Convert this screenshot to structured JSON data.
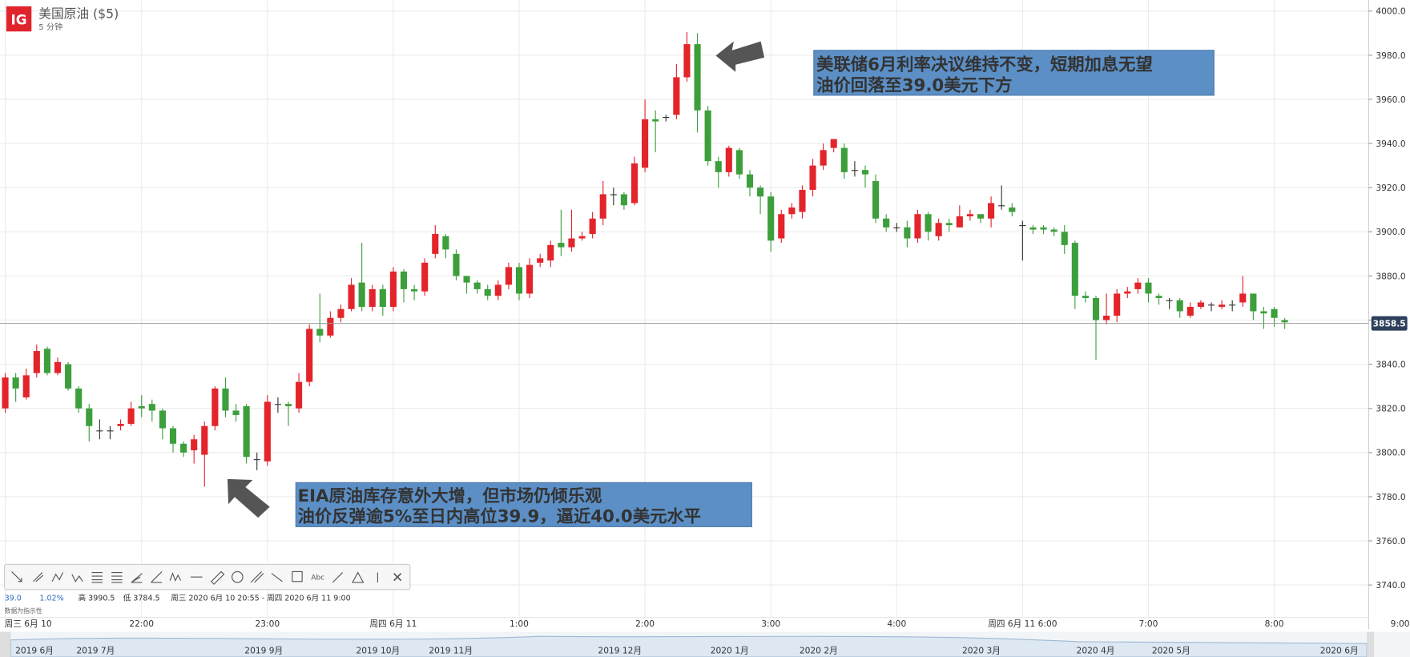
{
  "logo": "IG",
  "info": {
    "change": "39.0",
    "change_pct": "1.02%",
    "high": "高 3990.5",
    "low": "低 3784.5",
    "range": "周三 2020 6月 10 20:55 - 周四 2020 6月 11 9:00",
    "note": "数据为指示性"
  },
  "navigator": [
    "2019 6月",
    "2019 7月",
    "2019 9月",
    "2019 10月",
    "2019 11月",
    "2019 12月",
    "2020 1月",
    "2020 2月",
    "2020 3月",
    "2020 4月",
    "2020 5月",
    "2020 6月"
  ],
  "chart_data": {
    "type": "candlestick",
    "title": "美国原油 ($5)",
    "subtitle": "5 分钟",
    "up_color": "#e3242b",
    "down_color": "#3c9f3c",
    "grid": true,
    "open": [
      3820,
      3834,
      3825,
      3836,
      3847,
      3836,
      3840,
      3829,
      3820,
      3810,
      3810,
      3812,
      3813,
      3821,
      3822,
      3819,
      3811,
      3804,
      3801,
      3799,
      3812,
      3829,
      3819,
      3821,
      3797,
      3796,
      3822,
      3822,
      3820,
      3832,
      3856,
      3853,
      3861,
      3865,
      3877,
      3866,
      3874,
      3866,
      3882,
      3874,
      3873,
      3890,
      3898,
      3890,
      3880,
      3877,
      3874,
      3871,
      3876,
      3884,
      3872,
      3886,
      3887,
      3895,
      3893,
      3897,
      3899,
      3906,
      3917,
      3917,
      3913,
      3929,
      3951,
      3952,
      3953,
      3970,
      3985,
      3955,
      3932,
      3927,
      3937,
      3926,
      3920,
      3916,
      3897,
      3908,
      3909,
      3919,
      3930,
      3938,
      3938,
      3928,
      3928,
      3923,
      3906,
      3902,
      3902,
      3897,
      3908,
      3898,
      3904,
      3902,
      3907,
      3908,
      3906,
      3912,
      3911,
      3903,
      3902,
      3902,
      3901,
      3900,
      3895,
      3871,
      3870,
      3860,
      3862,
      3872,
      3874,
      3877,
      3871,
      3869,
      3869,
      3862,
      3866,
      3867,
      3866,
      3867,
      3868,
      3872,
      3864,
      3865,
      3860
    ],
    "high": [
      3836,
      3836,
      3838,
      3849,
      3848,
      3843,
      3841,
      3830,
      3822,
      3815,
      3812,
      3815,
      3823,
      3826,
      3824,
      3820,
      3812,
      3805,
      3808,
      3814,
      3830,
      3834,
      3822,
      3822,
      3800,
      3826,
      3825,
      3823,
      3836,
      3858,
      3872,
      3864,
      3867,
      3879,
      3895,
      3876,
      3876,
      3884,
      3883,
      3876,
      3888,
      3903,
      3899,
      3892,
      3880,
      3878,
      3876,
      3878,
      3886,
      3886,
      3888,
      3890,
      3896,
      3910,
      3910,
      3900,
      3909,
      3923,
      3920,
      3918,
      3934,
      3960,
      3955,
      3953,
      3976,
      3990.5,
      3990,
      3957,
      3934,
      3939,
      3938,
      3928,
      3921,
      3918,
      3910,
      3913,
      3921,
      3933,
      3940,
      3942,
      3940,
      3932,
      3930,
      3926,
      3908,
      3904,
      3905,
      3910,
      3909,
      3906,
      3906,
      3912,
      3910,
      3908,
      3916,
      3921,
      3913,
      3905,
      3903,
      3903,
      3902,
      3903,
      3896,
      3873,
      3871,
      3872,
      3874,
      3875,
      3879,
      3879,
      3872,
      3870,
      3870,
      3868,
      3869,
      3868,
      3869,
      3869,
      3880,
      3872,
      3866,
      3866,
      3861
    ],
    "low": [
      3818,
      3823,
      3824,
      3834,
      3835,
      3835,
      3828,
      3818,
      3805,
      3806,
      3806,
      3810,
      3812,
      3816,
      3814,
      3806,
      3800,
      3798,
      3795,
      3784.5,
      3810,
      3816,
      3814,
      3795,
      3792,
      3794,
      3818,
      3812,
      3818,
      3830,
      3850,
      3852,
      3859,
      3864,
      3864,
      3864,
      3862,
      3864,
      3868,
      3869,
      3871,
      3888,
      3888,
      3878,
      3872,
      3872,
      3869,
      3869,
      3874,
      3869,
      3870,
      3884,
      3884,
      3889,
      3891,
      3896,
      3897,
      3903,
      3912,
      3910,
      3912,
      3927,
      3936,
      3950,
      3951,
      3968,
      3945,
      3930,
      3920,
      3925,
      3924,
      3916,
      3908,
      3891,
      3895,
      3906,
      3906,
      3916,
      3928,
      3936,
      3924,
      3925,
      3920,
      3904,
      3900,
      3900,
      3893,
      3895,
      3896,
      3896,
      3900,
      3902,
      3905,
      3904,
      3902,
      3910,
      3907,
      3887,
      3899,
      3899,
      3898,
      3890,
      3865,
      3868,
      3842,
      3858,
      3859,
      3870,
      3872,
      3868,
      3867,
      3865,
      3861,
      3861,
      3865,
      3864,
      3865,
      3864,
      3866,
      3860,
      3856,
      3857,
      3856
    ],
    "close": [
      3834,
      3829,
      3835,
      3846,
      3836,
      3841,
      3829,
      3820,
      3812,
      3810,
      3810,
      3813,
      3820,
      3820,
      3819,
      3811,
      3804,
      3800,
      3806,
      3812,
      3829,
      3819,
      3817,
      3798,
      3797,
      3823,
      3822,
      3821,
      3832,
      3856,
      3853,
      3861,
      3865,
      3876,
      3866,
      3874,
      3866,
      3882,
      3874,
      3873,
      3886,
      3899,
      3892,
      3880,
      3877,
      3874,
      3871,
      3876,
      3884,
      3872,
      3885,
      3888,
      3894,
      3893,
      3897,
      3898,
      3906,
      3917,
      3917,
      3912,
      3931,
      3951,
      3950,
      3952,
      3970,
      3985,
      3955,
      3932,
      3927,
      3938,
      3926,
      3920,
      3916,
      3896,
      3908,
      3911,
      3919,
      3930,
      3937,
      3942,
      3927,
      3928,
      3926,
      3906,
      3902,
      3902,
      3897,
      3908,
      3900,
      3904,
      3903,
      3907,
      3908,
      3906,
      3913,
      3912,
      3909,
      3903,
      3901,
      3901,
      3900,
      3894,
      3871,
      3870,
      3860,
      3862,
      3872,
      3873,
      3877,
      3872,
      3870,
      3869,
      3864,
      3866,
      3868,
      3867,
      3867,
      3867,
      3872,
      3864,
      3863,
      3861,
      3859
    ],
    "xlim": [
      -0.5,
      130
    ],
    "xticks": [
      {
        "value": 0,
        "label": "周三 6月 10"
      },
      {
        "value": 13,
        "label": "22:00"
      },
      {
        "value": 25,
        "label": "23:00"
      },
      {
        "value": 37,
        "label": "周四 6月 11"
      },
      {
        "value": 49,
        "label": "1:00"
      },
      {
        "value": 61,
        "label": "2:00"
      },
      {
        "value": 73,
        "label": "3:00"
      },
      {
        "value": 85,
        "label": "4:00"
      },
      {
        "value": 97,
        "label": "周四 6月 11 6:00"
      },
      {
        "value": 109,
        "label": "7:00"
      },
      {
        "value": 121,
        "label": "8:00"
      },
      {
        "value": 133,
        "label": "9:00"
      }
    ],
    "ylim": [
      3720,
      4005
    ],
    "yticks": [
      {
        "value": 3740,
        "label": "3740.0"
      },
      {
        "value": 3760,
        "label": "3760.0"
      },
      {
        "value": 3780,
        "label": "3780.0"
      },
      {
        "value": 3800,
        "label": "3800.0"
      },
      {
        "value": 3820,
        "label": "3820.0"
      },
      {
        "value": 3840,
        "label": "3840.0"
      },
      {
        "value": 3860,
        "label": "3860.0"
      },
      {
        "value": 3880,
        "label": "3880.0"
      },
      {
        "value": 3900,
        "label": "3900.0"
      },
      {
        "value": 3920,
        "label": "3920.0"
      },
      {
        "value": 3940,
        "label": "3940.0"
      },
      {
        "value": 3960,
        "label": "3960.0"
      },
      {
        "value": 3980,
        "label": "3980.0"
      },
      {
        "value": 4000,
        "label": "4000.0"
      }
    ],
    "last_price": 3858.5,
    "annotations": [
      {
        "lines": [
          "美联储6月利率决议维持不变，短期加息无望",
          "油价回落至39.0美元下方"
        ]
      },
      {
        "lines": [
          "EIA原油库存意外大增，但市场仍倾乐观",
          "油价反弹逾5%至日内高位39.9，逼近40.0美元水平"
        ]
      }
    ]
  }
}
